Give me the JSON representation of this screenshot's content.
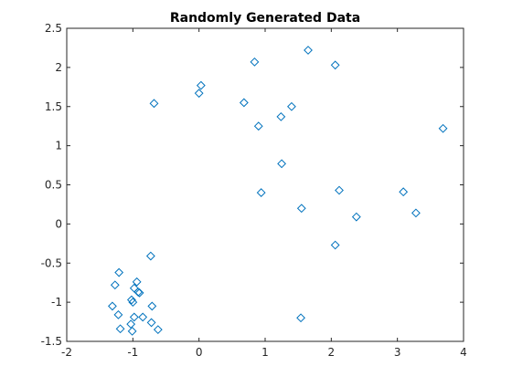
{
  "chart_data": {
    "type": "scatter",
    "title": "Randomly Generated Data",
    "xlabel": "",
    "ylabel": "",
    "xlim": [
      -2,
      4
    ],
    "ylim": [
      -1.5,
      2.5
    ],
    "xticks": [
      -2,
      -1,
      0,
      1,
      2,
      3,
      4
    ],
    "yticks": [
      -1.5,
      -1,
      -0.5,
      0,
      0.5,
      1,
      1.5,
      2,
      2.5
    ],
    "xtick_labels": [
      "-2",
      "-1",
      "0",
      "1",
      "2",
      "3",
      "4"
    ],
    "ytick_labels": [
      "-1.5",
      "-1",
      "-0.5",
      "0",
      "0.5",
      "1",
      "1.5",
      "2",
      "2.5"
    ],
    "grid": false,
    "marker": "diamond-open",
    "marker_color": "#0072BD",
    "axis_color": "#262626",
    "series": [
      {
        "x": [
          0.84,
          1.65,
          2.06,
          0.0,
          0.03,
          -0.68,
          0.68,
          1.4,
          1.24,
          0.9,
          3.69,
          1.25,
          0.94,
          2.12,
          3.09,
          1.55,
          3.28,
          2.38,
          2.06,
          -0.73,
          -1.21,
          -0.94,
          -1.27,
          -0.98,
          -0.92,
          -0.9,
          -1.02,
          -1.0,
          -1.31,
          -0.71,
          -1.22,
          -0.98,
          -0.85,
          -0.72,
          -1.03,
          -1.19,
          -0.62,
          -1.01,
          1.54
        ],
        "y": [
          2.07,
          2.22,
          2.03,
          1.67,
          1.77,
          1.54,
          1.55,
          1.5,
          1.37,
          1.25,
          1.22,
          0.77,
          0.4,
          0.43,
          0.41,
          0.2,
          0.14,
          0.09,
          -0.27,
          -0.41,
          -0.62,
          -0.74,
          -0.78,
          -0.82,
          -0.87,
          -0.88,
          -0.97,
          -1.0,
          -1.05,
          -1.05,
          -1.16,
          -1.19,
          -1.19,
          -1.26,
          -1.28,
          -1.34,
          -1.35,
          -1.37,
          -1.2
        ]
      }
    ]
  }
}
